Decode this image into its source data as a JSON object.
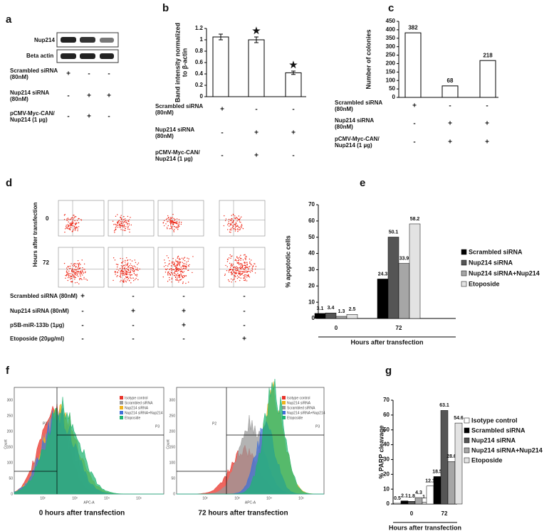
{
  "panels": {
    "a": {
      "label": "a",
      "blots": [
        "Nup214",
        "Beta actin"
      ],
      "conditions": [
        {
          "name": [
            "Scrambled siRNA",
            "(80nM)"
          ],
          "marks": [
            "+",
            "-",
            "-"
          ]
        },
        {
          "name": [
            "Nup214 siRNA",
            "(80nM)"
          ],
          "marks": [
            "-",
            "+",
            "+"
          ]
        },
        {
          "name": [
            "pCMV-Myc-CAN/",
            "Nup214 (1 µg)"
          ],
          "marks": [
            "-",
            "+",
            "-"
          ]
        }
      ]
    },
    "d": {
      "label": "d",
      "ylabel": "Hours after transfection",
      "rows": [
        "0",
        "72"
      ],
      "conditions": [
        {
          "name": [
            "Scrambled siRNA (80nM)"
          ],
          "marks": [
            "+",
            "-",
            "-",
            "-"
          ]
        },
        {
          "name": [
            "Nup214 siRNA (80nM)"
          ],
          "marks": [
            "-",
            "+",
            "+",
            "-"
          ]
        },
        {
          "name": [
            "pSB-miR-133b (1µg)"
          ],
          "marks": [
            "-",
            "-",
            "+",
            "-"
          ]
        },
        {
          "name": [
            "Etoposide (20µg/ml)"
          ],
          "marks": [
            "-",
            "-",
            "-",
            "+"
          ]
        }
      ]
    },
    "f": {
      "label": "f",
      "plots": [
        {
          "title": "0 hours after transfection",
          "xlabel": "APC-A",
          "ylabel": "Count",
          "gates": [
            "P3",
            "P2"
          ],
          "legend": [
            {
              "name": "Isotype control",
              "color": "#e8332a"
            },
            {
              "name": "Scrambled siRNA",
              "color": "#9a9a9a"
            },
            {
              "name": "Nup214 siRNA",
              "color": "#f0b21c"
            },
            {
              "name": "Nup214 siRNA+Nup214",
              "color": "#3f6fd8"
            },
            {
              "name": "Etoposide",
              "color": "#22b573"
            }
          ]
        },
        {
          "title": "72 hours after transfection",
          "xlabel": "APC-A",
          "ylabel": "Count",
          "gates": [
            "P3",
            "P2"
          ],
          "legend": [
            {
              "name": "Isotype control",
              "color": "#e8332a"
            },
            {
              "name": "Nup214 siRNA",
              "color": "#f0b21c"
            },
            {
              "name": "Scrambled siRNA",
              "color": "#9a9a9a"
            },
            {
              "name": "Nup214 siRNA+Nup214",
              "color": "#3f6fd8"
            },
            {
              "name": "Etoposide",
              "color": "#22b573"
            }
          ]
        }
      ],
      "yticks": [
        "0",
        "50",
        "100",
        "150",
        "200",
        "250",
        "300"
      ],
      "xticks": [
        "10²",
        "10³",
        "10⁴",
        "10⁵"
      ]
    }
  },
  "chart_data": [
    {
      "type": "bar",
      "label": "b",
      "ylabel": [
        "Band intensity normalized",
        "to β-actin"
      ],
      "values": [
        1.05,
        1.0,
        0.42
      ],
      "errors": [
        0.05,
        0.05,
        0.03
      ],
      "bar_marks": [
        null,
        "★",
        "★"
      ],
      "color": "#ffffff",
      "ylim": [
        0,
        1.2
      ],
      "yticks": [
        0,
        0.2,
        0.4,
        0.6,
        0.8,
        1,
        1.2
      ],
      "conditions": [
        {
          "name": [
            "Scrambled siRNA",
            "(80nM)"
          ],
          "marks": [
            "+",
            "-",
            "-"
          ]
        },
        {
          "name": [
            "Nup214 siRNA",
            "(80nM)"
          ],
          "marks": [
            "-",
            "+",
            "+"
          ]
        },
        {
          "name": [
            "pCMV-Myc-CAN/",
            "Nup214 (1 µg)"
          ],
          "marks": [
            "-",
            "+",
            "-"
          ]
        }
      ]
    },
    {
      "type": "bar",
      "label": "c",
      "ylabel": [
        "Number of colonies"
      ],
      "values": [
        382,
        68,
        218
      ],
      "color": "#ffffff",
      "ylim": [
        0,
        450
      ],
      "yticks": [
        0,
        50,
        100,
        150,
        200,
        250,
        300,
        350,
        400,
        450
      ],
      "conditions": [
        {
          "name": [
            "Scrambled siRNA",
            "(80nM)"
          ],
          "marks": [
            "+",
            "-",
            "-"
          ]
        },
        {
          "name": [
            "Nup214 siRNA",
            "(80nM)"
          ],
          "marks": [
            "-",
            "+",
            "+"
          ]
        },
        {
          "name": [
            "pCMV-Myc-CAN/",
            "Nup214 (1 µg)"
          ],
          "marks": [
            "-",
            "+",
            "+"
          ]
        }
      ]
    },
    {
      "type": "grouped_bar",
      "label": "e",
      "ylabel": [
        "% apoptotic cells"
      ],
      "xlabel": "Hours after transfection",
      "categories": [
        "0",
        "72"
      ],
      "series": [
        {
          "name": "Scrambled siRNA",
          "color": "#000000",
          "values": [
            3.1,
            24.3
          ]
        },
        {
          "name": "Nup214 siRNA",
          "color": "#555555",
          "values": [
            3.4,
            50.1
          ]
        },
        {
          "name": "Nup214 siRNA+Nup214",
          "color": "#a6a6a6",
          "values": [
            1.3,
            33.9
          ]
        },
        {
          "name": "Etoposide",
          "color": "#e3e3e3",
          "values": [
            2.5,
            58.2
          ]
        }
      ],
      "ylim": [
        0,
        70
      ],
      "yticks": [
        0,
        10,
        20,
        30,
        40,
        50,
        60,
        70
      ]
    },
    {
      "type": "grouped_bar",
      "label": "g",
      "ylabel": [
        "% PARP cleavage"
      ],
      "xlabel": "Hours after transfection",
      "categories": [
        "0",
        "72"
      ],
      "series": [
        {
          "name": "Isotype control",
          "color": "#ffffff",
          "values": [
            0.5,
            12.1
          ]
        },
        {
          "name": "Scrambled siRNA",
          "color": "#000000",
          "values": [
            2.1,
            18.5
          ]
        },
        {
          "name": "Nup214 siRNA",
          "color": "#555555",
          "values": [
            1.8,
            63.1
          ]
        },
        {
          "name": "Nup214 siRNA+Nup214",
          "color": "#a6a6a6",
          "values": [
            4.3,
            28.6
          ]
        },
        {
          "name": "Etoposide",
          "color": "#e3e3e3",
          "values": [
            1.3,
            54.6
          ]
        }
      ],
      "ylim": [
        0,
        70
      ],
      "yticks": [
        0,
        10,
        20,
        30,
        40,
        50,
        60,
        70
      ]
    }
  ]
}
